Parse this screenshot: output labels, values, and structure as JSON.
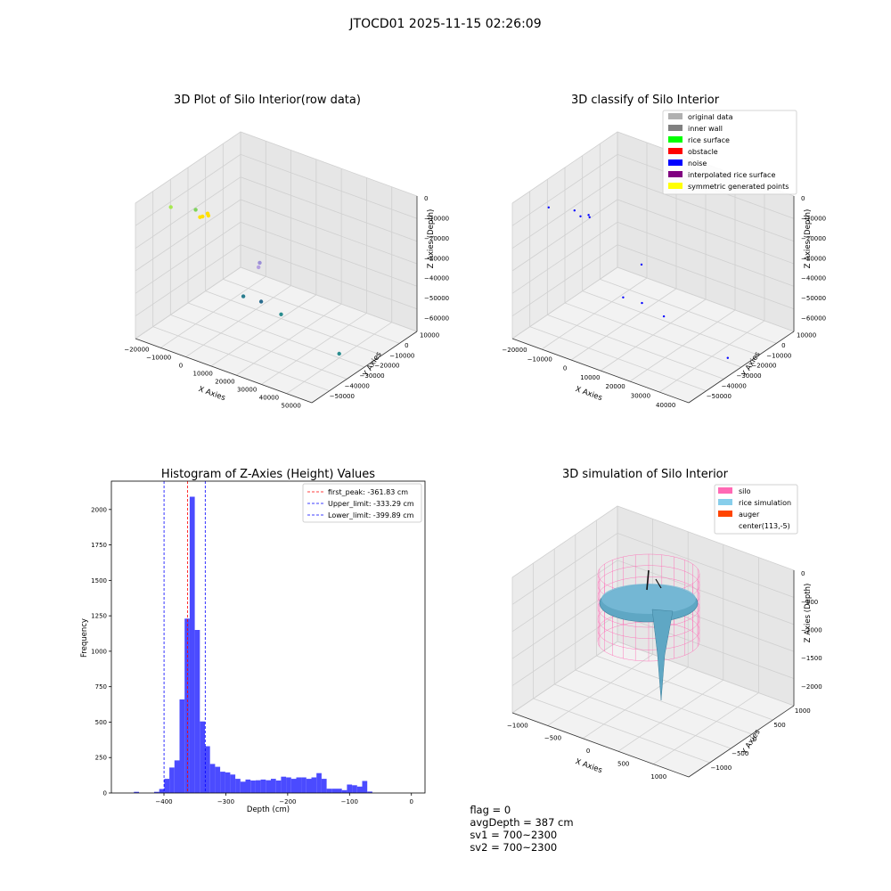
{
  "suptitle": "JTOCD01 2025-11-15 02:26:09",
  "panels": {
    "raw": {
      "title": "3D Plot of Silo Interior(row data)",
      "xlabel": "X Axies",
      "ylabel": "Y Axies",
      "zlabel": "Z Axies (Depth)",
      "x_ticks": [
        "−20000",
        "−10000",
        "0",
        "10000",
        "20000",
        "30000",
        "40000",
        "50000"
      ],
      "y_ticks": [
        "10000",
        "0",
        "−10000",
        "−20000",
        "−30000",
        "−40000",
        "−50000"
      ],
      "z_ticks": [
        "0",
        "−10000",
        "−20000",
        "−30000",
        "−40000",
        "−50000",
        "−60000"
      ]
    },
    "classify": {
      "title": "3D classify of Silo Interior",
      "xlabel": "X Axies",
      "ylabel": "Y Axies",
      "zlabel": "Z Axies (Depth)",
      "x_ticks": [
        "−20000",
        "−10000",
        "0",
        "10000",
        "20000",
        "30000",
        "40000"
      ],
      "y_ticks": [
        "10000",
        "0",
        "−10000",
        "−20000",
        "−30000",
        "−40000",
        "−50000"
      ],
      "z_ticks": [
        "0",
        "−10000",
        "−20000",
        "−30000",
        "−40000",
        "−50000",
        "−60000"
      ],
      "legend": [
        {
          "label": "original data",
          "color": "#b0b0b0"
        },
        {
          "label": "inner wall",
          "color": "#808080"
        },
        {
          "label": "rice surface",
          "color": "#00ff00"
        },
        {
          "label": "obstacle",
          "color": "#ff0000"
        },
        {
          "label": "noise",
          "color": "#0000ff"
        },
        {
          "label": "interpolated rice surface",
          "color": "#800080"
        },
        {
          "label": "symmetric generated points",
          "color": "#ffff00"
        }
      ]
    },
    "simulation": {
      "title": "3D simulation of Silo Interior",
      "xlabel": "X Axies",
      "ylabel": "Y Axies",
      "zlabel": "Z Axies (Depth)",
      "x_ticks": [
        "−1000",
        "−500",
        "0",
        "500",
        "1000"
      ],
      "y_ticks": [
        "1000",
        "500",
        "0",
        "−500",
        "−1000"
      ],
      "z_ticks": [
        "0",
        "−500",
        "−1000",
        "−1500",
        "−2000"
      ],
      "legend": [
        {
          "label": "silo",
          "color": "#ff69b4"
        },
        {
          "label": "rice simulation",
          "color": "#87ceeb"
        },
        {
          "label": "auger",
          "color": "#ff4500"
        },
        {
          "label": "center(113,-5)",
          "color": "none"
        }
      ]
    }
  },
  "status": {
    "flag": "flag = 0",
    "avg_depth": "avgDepth = 387 cm",
    "sv1": "sv1 = 700~2300",
    "sv2": "sv2 = 700~2300"
  },
  "chart_data": [
    {
      "type": "histogram",
      "title": "Histogram of Z-Axies (Height) Values",
      "xlabel": "Depth (cm)",
      "ylabel": "Frequency",
      "xlim": [
        -485,
        22
      ],
      "ylim": [
        0,
        2200
      ],
      "x_ticks": [
        -400,
        -300,
        -200,
        -100,
        0
      ],
      "y_ticks": [
        0,
        250,
        500,
        750,
        1000,
        1250,
        1500,
        1750,
        2000
      ],
      "bar_color": "#4b4bff",
      "bin_width": 8.2,
      "bin_start": -465,
      "counts": [
        0,
        0,
        8,
        0,
        0,
        0,
        8,
        28,
        100,
        180,
        230,
        660,
        1230,
        2090,
        1150,
        505,
        330,
        205,
        185,
        150,
        145,
        130,
        100,
        80,
        95,
        88,
        90,
        95,
        90,
        100,
        88,
        115,
        110,
        100,
        110,
        110,
        100,
        110,
        140,
        100,
        30,
        30,
        30,
        20,
        60,
        55,
        45,
        85,
        10
      ],
      "vlines": [
        {
          "x": -361.83,
          "color": "#ff0000",
          "label": "first_peak: -361.83 cm"
        },
        {
          "x": -333.29,
          "color": "#0000ff",
          "label": "Upper_limit: -333.29 cm"
        },
        {
          "x": -399.89,
          "color": "#0000ff",
          "label": "Lower_limit: -399.89 cm"
        }
      ],
      "legend_position": "top-right"
    },
    {
      "type": "scatter3d",
      "panel": "raw",
      "xlim": [
        -20000,
        50000
      ],
      "ylim": [
        -50000,
        10000
      ],
      "zlim": [
        -62000,
        2000
      ],
      "points": [
        {
          "x": 1000,
          "y": -1000,
          "z": 0,
          "color": "#ffe000"
        },
        {
          "x": 2000,
          "y": 0,
          "z": 0,
          "color": "#ffe000"
        },
        {
          "x": 0,
          "y": 500,
          "z": -1000,
          "color": "#ffe000"
        },
        {
          "x": -2000,
          "y": -1000,
          "z": -3000,
          "color": "#ffe000"
        },
        {
          "x": -15000,
          "y": -3000,
          "z": -5000,
          "color": "#a6e84f"
        },
        {
          "x": -10000,
          "y": -10000,
          "z": -8000,
          "color": "#7fd35c"
        },
        {
          "x": 5000,
          "y": -25000,
          "z": -35000,
          "color": "#9b8fd6"
        },
        {
          "x": 8000,
          "y": -20000,
          "z": -33000,
          "color": "#b49fe0"
        },
        {
          "x": -5000,
          "y": -30000,
          "z": -58000,
          "color": "#2a7d8f"
        },
        {
          "x": 0,
          "y": -33000,
          "z": -60000,
          "color": "#2a6d8f"
        },
        {
          "x": 10000,
          "y": -30000,
          "z": -60000,
          "color": "#2a8d8f"
        },
        {
          "x": 40000,
          "y": -20000,
          "z": -60000,
          "color": "#2a8d8f"
        }
      ]
    },
    {
      "type": "scatter3d",
      "panel": "classify",
      "xlim": [
        -20000,
        45000
      ],
      "ylim": [
        -50000,
        10000
      ],
      "zlim": [
        -62000,
        2000
      ],
      "points": [
        {
          "x": 1000,
          "y": -1000,
          "z": 0,
          "color": "#0000ff"
        },
        {
          "x": 2000,
          "y": 0,
          "z": 0,
          "color": "#0000ff"
        },
        {
          "x": -2000,
          "y": -1000,
          "z": -2000,
          "color": "#0000ff"
        },
        {
          "x": -15000,
          "y": -3000,
          "z": -5000,
          "color": "#0000ff"
        },
        {
          "x": -10000,
          "y": -10000,
          "z": -8000,
          "color": "#0000ff"
        },
        {
          "x": 5000,
          "y": -25000,
          "z": -35000,
          "color": "#0000ff"
        },
        {
          "x": -5000,
          "y": -30000,
          "z": -58000,
          "color": "#0000ff"
        },
        {
          "x": 0,
          "y": -33000,
          "z": -60000,
          "color": "#0000ff"
        },
        {
          "x": 10000,
          "y": -30000,
          "z": -60000,
          "color": "#0000ff"
        },
        {
          "x": 40000,
          "y": -20000,
          "z": -60000,
          "color": "#0000ff"
        }
      ]
    }
  ]
}
